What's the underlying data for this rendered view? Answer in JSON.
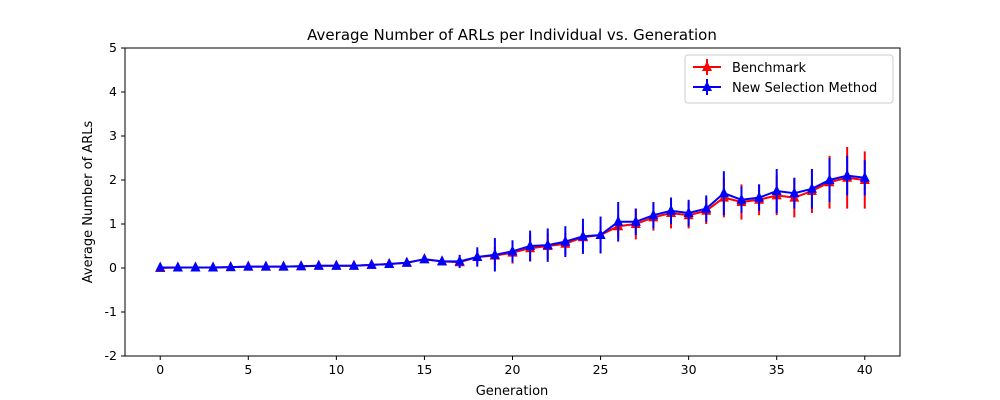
{
  "chart_data": {
    "type": "line",
    "title": "Average Number of ARLs per Individual vs. Generation",
    "xlabel": "Generation",
    "ylabel": "Average Number of ARLs",
    "xlim": [
      -2,
      42
    ],
    "ylim": [
      -2,
      5
    ],
    "xticks": [
      "0",
      "5",
      "10",
      "15",
      "20",
      "25",
      "30",
      "35",
      "40"
    ],
    "yticks": [
      "-2",
      "-1",
      "0",
      "1",
      "2",
      "3",
      "4",
      "5"
    ],
    "legend_position": "top-right",
    "grid": false,
    "error_bars": true,
    "marker": "triangle",
    "x": [
      0,
      1,
      2,
      3,
      4,
      5,
      6,
      7,
      8,
      9,
      10,
      11,
      12,
      13,
      14,
      15,
      16,
      17,
      18,
      19,
      20,
      21,
      22,
      23,
      24,
      25,
      26,
      27,
      28,
      29,
      30,
      31,
      32,
      33,
      34,
      35,
      36,
      37,
      38,
      39,
      40
    ],
    "series": [
      {
        "name": "Benchmark",
        "color": "#ff0000",
        "values": [
          0.0,
          0.01,
          0.01,
          0.01,
          0.02,
          0.03,
          0.03,
          0.03,
          0.04,
          0.05,
          0.05,
          0.05,
          0.07,
          0.09,
          0.12,
          0.2,
          0.15,
          0.13,
          0.25,
          0.28,
          0.35,
          0.45,
          0.5,
          0.55,
          0.7,
          0.75,
          0.95,
          1.0,
          1.15,
          1.25,
          1.2,
          1.3,
          1.6,
          1.5,
          1.55,
          1.65,
          1.6,
          1.75,
          1.95,
          2.05,
          2.0
        ],
        "errors": [
          0.02,
          0.02,
          0.02,
          0.02,
          0.02,
          0.03,
          0.03,
          0.03,
          0.03,
          0.04,
          0.04,
          0.04,
          0.05,
          0.05,
          0.06,
          0.08,
          0.07,
          0.1,
          0.15,
          0.2,
          0.25,
          0.3,
          0.3,
          0.25,
          0.25,
          0.2,
          0.25,
          0.35,
          0.3,
          0.35,
          0.3,
          0.3,
          0.45,
          0.4,
          0.35,
          0.45,
          0.45,
          0.5,
          0.6,
          0.7,
          0.65
        ]
      },
      {
        "name": "New Selection Method",
        "color": "#0000ff",
        "values": [
          0.01,
          0.01,
          0.01,
          0.01,
          0.02,
          0.03,
          0.03,
          0.03,
          0.04,
          0.05,
          0.05,
          0.05,
          0.07,
          0.09,
          0.12,
          0.2,
          0.15,
          0.15,
          0.25,
          0.3,
          0.38,
          0.5,
          0.52,
          0.6,
          0.72,
          0.75,
          1.05,
          1.05,
          1.2,
          1.3,
          1.25,
          1.35,
          1.7,
          1.55,
          1.6,
          1.75,
          1.7,
          1.8,
          2.0,
          2.1,
          2.05
        ],
        "errors": [
          0.02,
          0.02,
          0.02,
          0.02,
          0.02,
          0.03,
          0.03,
          0.03,
          0.03,
          0.04,
          0.04,
          0.04,
          0.05,
          0.05,
          0.06,
          0.08,
          0.07,
          0.15,
          0.22,
          0.38,
          0.25,
          0.35,
          0.38,
          0.35,
          0.4,
          0.42,
          0.45,
          0.3,
          0.3,
          0.3,
          0.3,
          0.3,
          0.5,
          0.3,
          0.3,
          0.5,
          0.35,
          0.45,
          0.5,
          0.45,
          0.4
        ]
      }
    ]
  }
}
